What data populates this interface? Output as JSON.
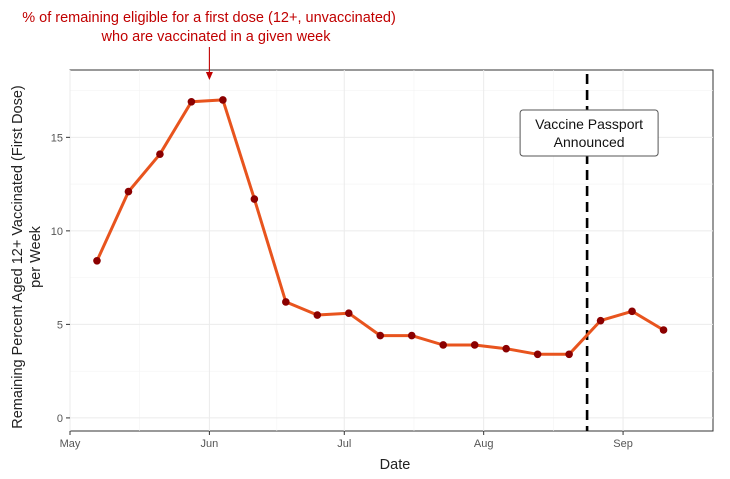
{
  "chart_data": {
    "type": "line",
    "title": [
      "% of remaining eligible for a first dose (12+, unvaccinated)",
      "who are vaccinated in a given week"
    ],
    "xlabel": "Date",
    "ylabel": [
      "Remaining Percent Aged 12+ Vaccinated (First Dose)",
      "per Week"
    ],
    "xlim": [
      "2021-05-01",
      "2021-09-21"
    ],
    "ylim": [
      -0.7,
      18.6
    ],
    "x_ticks": [
      {
        "date": "2021-05-01",
        "label": "May"
      },
      {
        "date": "2021-06-01",
        "label": "Jun"
      },
      {
        "date": "2021-07-01",
        "label": "Jul"
      },
      {
        "date": "2021-08-01",
        "label": "Aug"
      },
      {
        "date": "2021-09-01",
        "label": "Sep"
      }
    ],
    "y_ticks": [
      0,
      5,
      10,
      15
    ],
    "grid": true,
    "legend": "none",
    "x": [
      "2021-05-07",
      "2021-05-14",
      "2021-05-21",
      "2021-05-28",
      "2021-06-04",
      "2021-06-11",
      "2021-06-18",
      "2021-06-25",
      "2021-07-02",
      "2021-07-09",
      "2021-07-16",
      "2021-07-23",
      "2021-07-30",
      "2021-08-06",
      "2021-08-13",
      "2021-08-20",
      "2021-08-27",
      "2021-09-03",
      "2021-09-10"
    ],
    "values": [
      8.4,
      12.1,
      14.1,
      16.9,
      17.0,
      11.7,
      6.2,
      5.5,
      5.6,
      4.4,
      4.4,
      3.9,
      3.9,
      3.7,
      3.4,
      3.4,
      5.2,
      5.7,
      4.7
    ],
    "vline": {
      "date": "2021-08-24",
      "label": [
        "Vaccine Passport",
        "Announced"
      ]
    },
    "arrow_annotation": {
      "date": "2021-06-01"
    },
    "colors": {
      "line": "#E8541E",
      "point": "#8B0000",
      "title": "#C00000",
      "grid": "#EBEBEB",
      "vline": "#000000"
    }
  }
}
